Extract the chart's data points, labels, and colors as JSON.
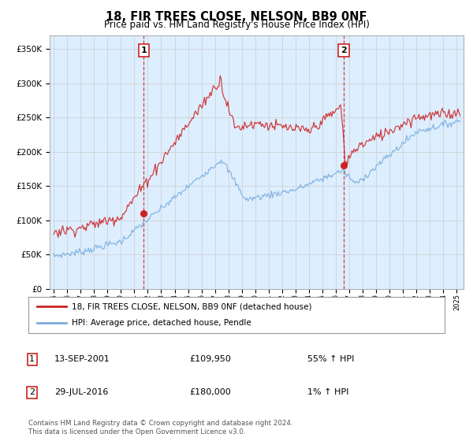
{
  "title": "18, FIR TREES CLOSE, NELSON, BB9 0NF",
  "subtitle": "Price paid vs. HM Land Registry's House Price Index (HPI)",
  "ylabel_ticks": [
    "£0",
    "£50K",
    "£100K",
    "£150K",
    "£200K",
    "£250K",
    "£300K",
    "£350K"
  ],
  "ytick_values": [
    0,
    50000,
    100000,
    150000,
    200000,
    250000,
    300000,
    350000
  ],
  "ylim": [
    0,
    370000
  ],
  "xlim_start": 1994.7,
  "xlim_end": 2025.5,
  "hpi_color": "#7aaddc",
  "price_color": "#cc2222",
  "plot_bg_color": "#ddeeff",
  "marker1_date": 2001.71,
  "marker1_price": 109950,
  "marker1_label": "1",
  "marker2_date": 2016.58,
  "marker2_price": 180000,
  "marker2_label": "2",
  "legend_line1": "18, FIR TREES CLOSE, NELSON, BB9 0NF (detached house)",
  "legend_line2": "HPI: Average price, detached house, Pendle",
  "table_row1_num": "1",
  "table_row1_date": "13-SEP-2001",
  "table_row1_price": "£109,950",
  "table_row1_hpi": "55% ↑ HPI",
  "table_row2_num": "2",
  "table_row2_date": "29-JUL-2016",
  "table_row2_price": "£180,000",
  "table_row2_hpi": "1% ↑ HPI",
  "footer": "Contains HM Land Registry data © Crown copyright and database right 2024.\nThis data is licensed under the Open Government Licence v3.0.",
  "background_color": "#ffffff",
  "grid_color": "#cccccc"
}
